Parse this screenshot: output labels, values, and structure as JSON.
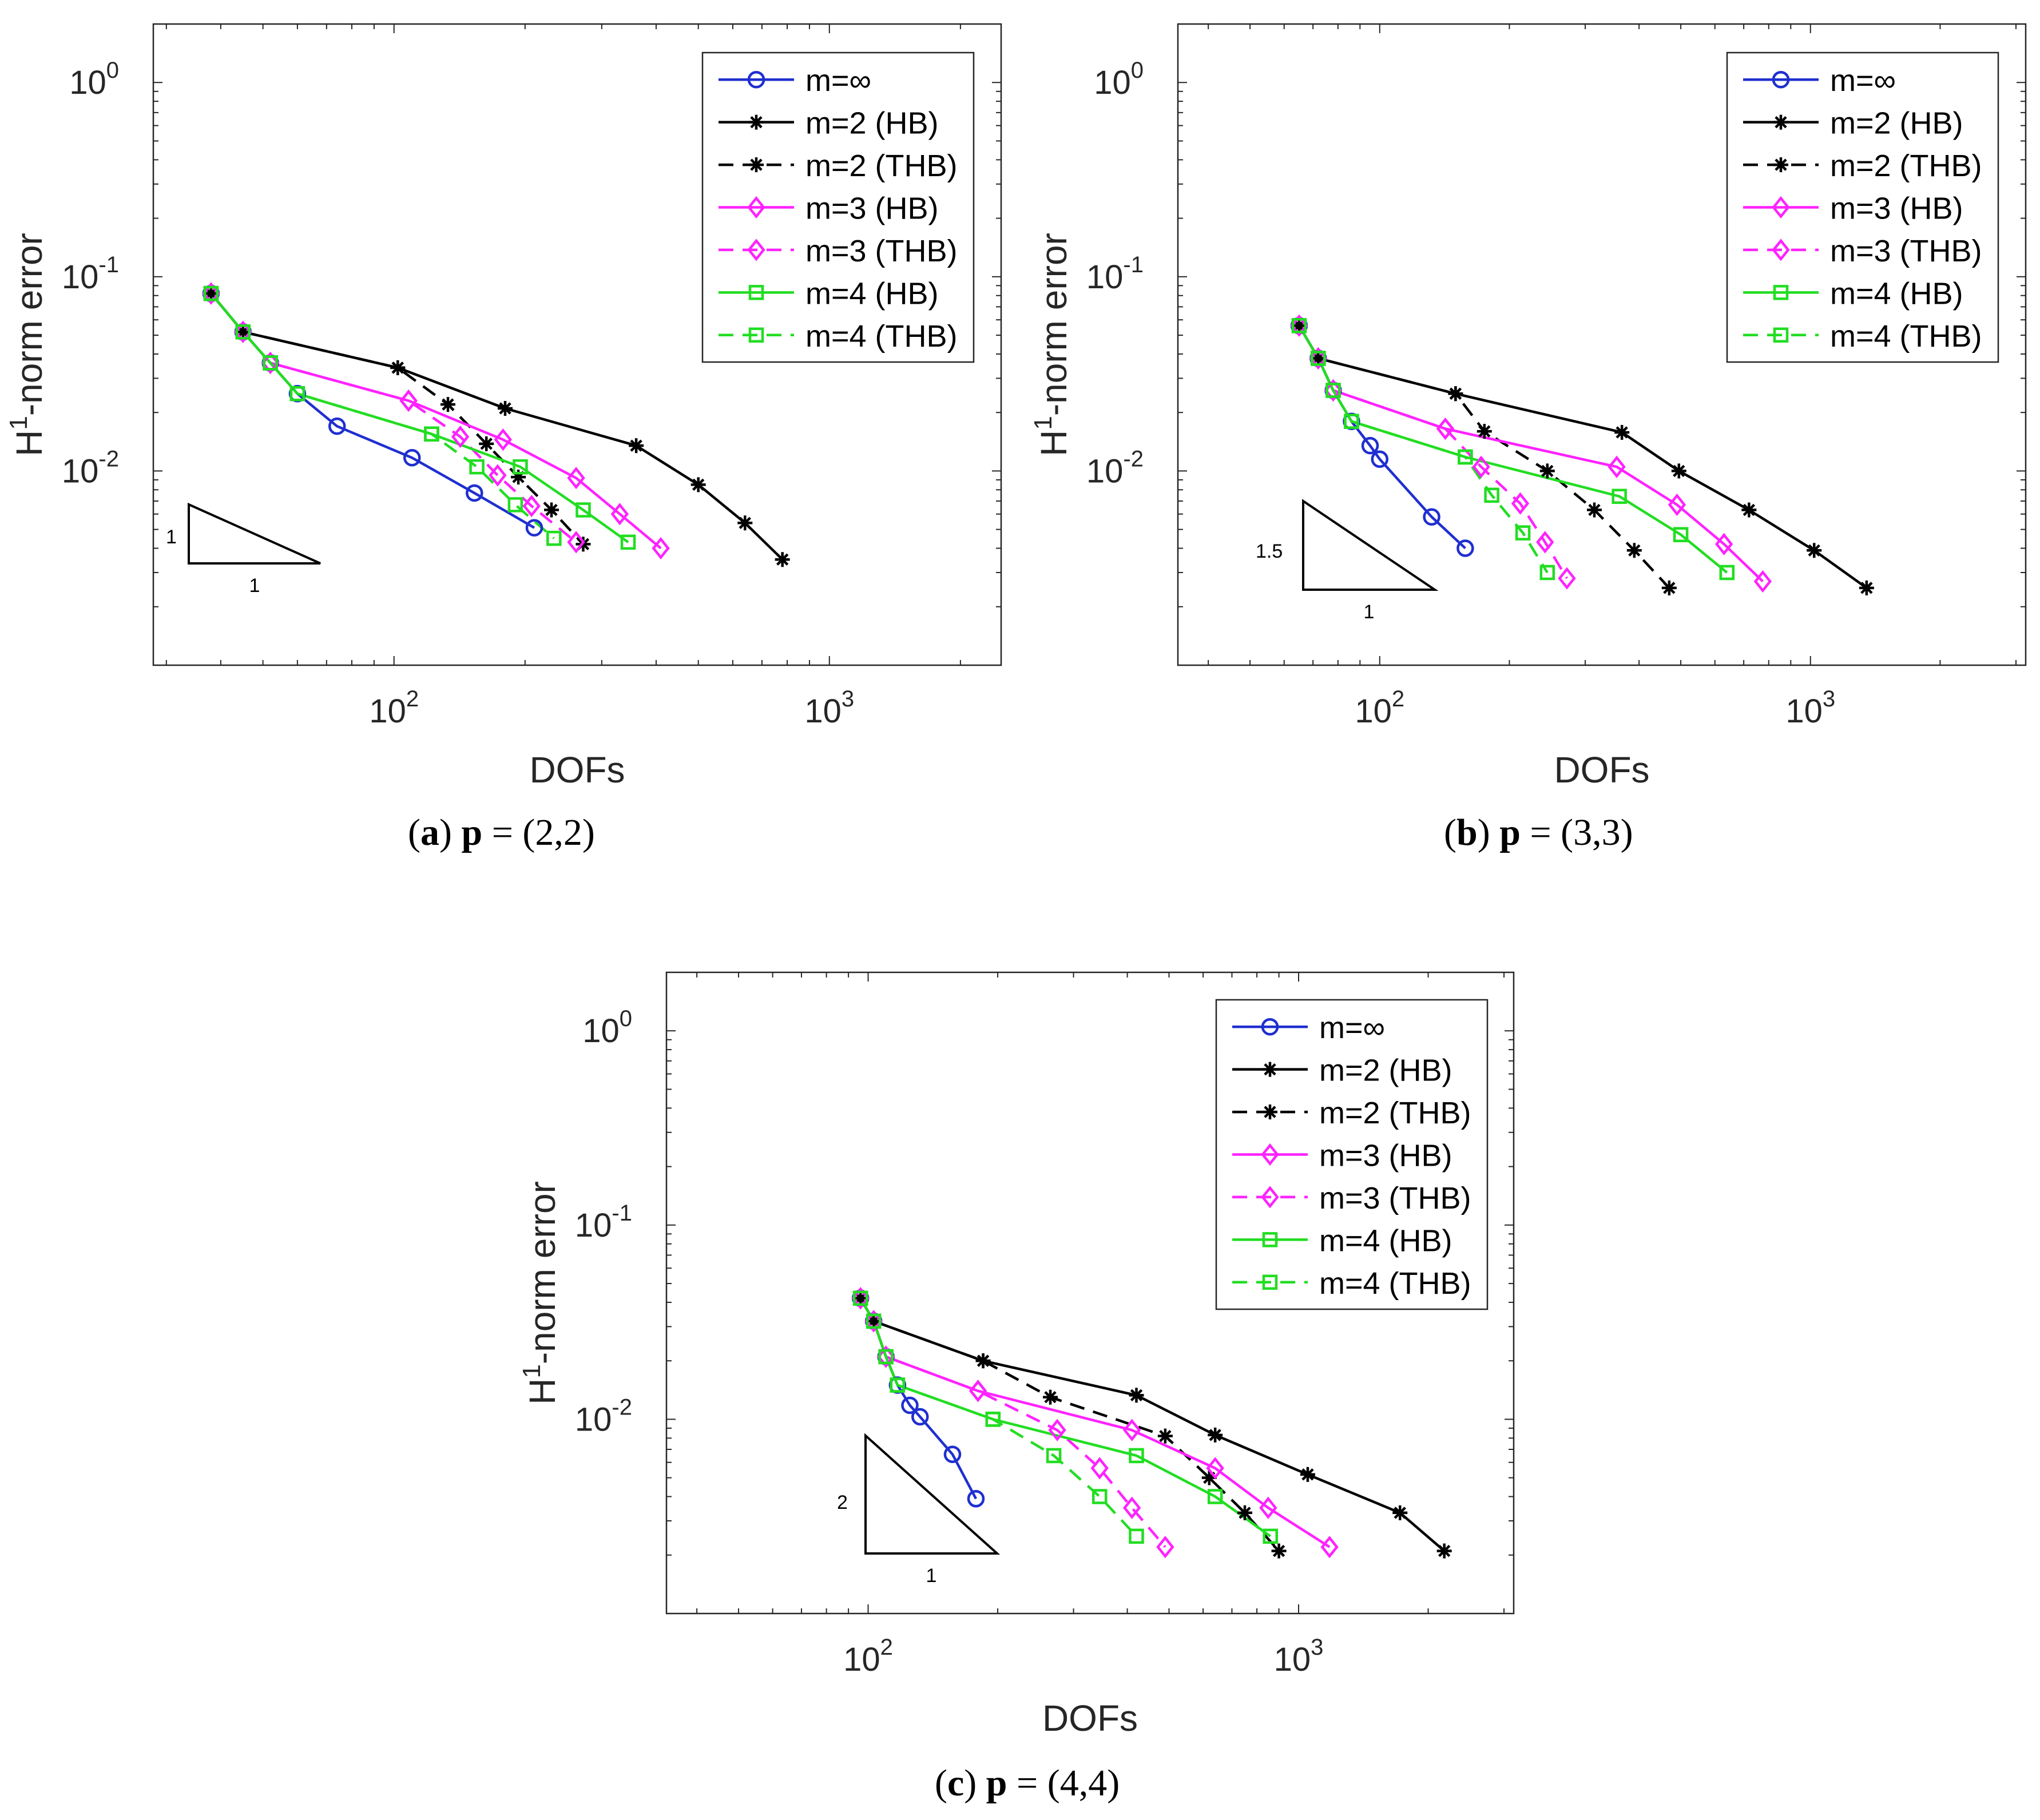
{
  "figure": {
    "panels": [
      {
        "id": "a",
        "label": "a",
        "p_value": "(2,2)",
        "math_symbol": "p",
        "slope_label": "1",
        "base_label": "1"
      },
      {
        "id": "b",
        "label": "b",
        "p_value": "(3,3)",
        "math_symbol": "p",
        "slope_label": "1.5",
        "base_label": "1"
      },
      {
        "id": "c",
        "label": "c",
        "p_value": "(4,4)",
        "math_symbol": "p",
        "slope_label": "2",
        "base_label": "1"
      }
    ]
  },
  "colors": {
    "m_inf": "#1f2fd0",
    "m2": "#000000",
    "m3": "#ff22ff",
    "m4": "#22dd22"
  },
  "chart_data": [
    {
      "type": "line",
      "title": "(a) p = (2,2)",
      "xlabel": "DOFs",
      "ylabel": "H^1-norm error",
      "xscale": "log",
      "yscale": "log",
      "xlim": [
        28,
        2480
      ],
      "ylim": [
        0.001,
        2.0
      ],
      "xticks": [
        {
          "value": 100,
          "base": "10",
          "exp": "2"
        },
        {
          "value": 1000,
          "base": "10",
          "exp": "3"
        }
      ],
      "yticks": [
        {
          "value": 1,
          "base": "10",
          "exp": "0"
        },
        {
          "value": 0.1,
          "base": "10",
          "exp": "-1"
        },
        {
          "value": 0.01,
          "base": "10",
          "exp": "-2"
        }
      ],
      "legend_position": "top-right",
      "series": [
        {
          "name": "m=∞",
          "color": "#1f2fd0",
          "dash": "solid",
          "marker": "circle",
          "x": [
            38,
            45,
            52,
            60,
            74,
            110,
            153,
            210
          ],
          "y": [
            0.082,
            0.052,
            0.036,
            0.025,
            0.017,
            0.0117,
            0.0077,
            0.0051
          ]
        },
        {
          "name": "m=2 (HB)",
          "color": "#000000",
          "dash": "solid",
          "marker": "asterisk",
          "x": [
            38,
            45,
            102,
            180,
            360,
            500,
            640,
            780
          ],
          "y": [
            0.082,
            0.052,
            0.034,
            0.021,
            0.0135,
            0.0085,
            0.0054,
            0.0035
          ]
        },
        {
          "name": "m=2 (THB)",
          "color": "#000000",
          "dash": "dashed",
          "marker": "asterisk",
          "x": [
            38,
            45,
            102,
            133,
            163,
            193,
            230,
            272
          ],
          "y": [
            0.082,
            0.052,
            0.034,
            0.022,
            0.0138,
            0.0093,
            0.0063,
            0.0042
          ]
        },
        {
          "name": "m=3 (HB)",
          "color": "#ff22ff",
          "dash": "solid",
          "marker": "diamond",
          "x": [
            38,
            45,
            52,
            108,
            178,
            262,
            330,
            410
          ],
          "y": [
            0.082,
            0.052,
            0.036,
            0.023,
            0.0145,
            0.0092,
            0.006,
            0.004
          ]
        },
        {
          "name": "m=3 (THB)",
          "color": "#ff22ff",
          "dash": "dashed",
          "marker": "diamond",
          "x": [
            38,
            45,
            52,
            108,
            142,
            173,
            207,
            262
          ],
          "y": [
            0.082,
            0.052,
            0.036,
            0.023,
            0.015,
            0.0095,
            0.0066,
            0.0043
          ]
        },
        {
          "name": "m=4 (HB)",
          "color": "#22dd22",
          "dash": "solid",
          "marker": "square",
          "x": [
            38,
            45,
            52,
            60,
            122,
            195,
            272,
            345
          ],
          "y": [
            0.082,
            0.052,
            0.036,
            0.025,
            0.0155,
            0.0105,
            0.0063,
            0.0043
          ]
        },
        {
          "name": "m=4 (THB)",
          "color": "#22dd22",
          "dash": "dashed",
          "marker": "square",
          "x": [
            38,
            45,
            52,
            60,
            122,
            155,
            190,
            233
          ],
          "y": [
            0.082,
            0.052,
            0.036,
            0.025,
            0.0155,
            0.0105,
            0.0067,
            0.0045
          ]
        }
      ]
    },
    {
      "type": "line",
      "title": "(b) p = (3,3)",
      "xlabel": "DOFs",
      "ylabel": "H^1-norm error",
      "xscale": "log",
      "yscale": "log",
      "xlim": [
        34,
        3160
      ],
      "ylim": [
        0.001,
        2.0
      ],
      "xticks": [
        {
          "value": 100,
          "base": "10",
          "exp": "2"
        },
        {
          "value": 1000,
          "base": "10",
          "exp": "3"
        }
      ],
      "yticks": [
        {
          "value": 1,
          "base": "10",
          "exp": "0"
        },
        {
          "value": 0.1,
          "base": "10",
          "exp": "-1"
        },
        {
          "value": 0.01,
          "base": "10",
          "exp": "-2"
        }
      ],
      "legend_position": "top-right",
      "series": [
        {
          "name": "m=∞",
          "color": "#1f2fd0",
          "dash": "solid",
          "marker": "circle",
          "x": [
            65,
            72,
            78,
            86,
            95,
            100,
            132,
            158
          ],
          "y": [
            0.056,
            0.038,
            0.026,
            0.018,
            0.0135,
            0.0115,
            0.0058,
            0.004
          ]
        },
        {
          "name": "m=2 (HB)",
          "color": "#000000",
          "dash": "solid",
          "marker": "asterisk",
          "x": [
            65,
            72,
            150,
            365,
            495,
            720,
            1020,
            1350
          ],
          "y": [
            0.056,
            0.038,
            0.025,
            0.0158,
            0.01,
            0.0063,
            0.0039,
            0.0025
          ]
        },
        {
          "name": "m=2 (THB)",
          "color": "#000000",
          "dash": "dashed",
          "marker": "asterisk",
          "x": [
            65,
            72,
            150,
            175,
            245,
            315,
            390,
            470
          ],
          "y": [
            0.056,
            0.038,
            0.025,
            0.016,
            0.01,
            0.0063,
            0.0039,
            0.0025
          ]
        },
        {
          "name": "m=3 (HB)",
          "color": "#ff22ff",
          "dash": "solid",
          "marker": "diamond",
          "x": [
            65,
            72,
            78,
            142,
            355,
            490,
            630,
            775
          ],
          "y": [
            0.056,
            0.038,
            0.026,
            0.0165,
            0.0105,
            0.0067,
            0.0042,
            0.0027
          ]
        },
        {
          "name": "m=3 (THB)",
          "color": "#ff22ff",
          "dash": "dashed",
          "marker": "diamond",
          "x": [
            65,
            72,
            78,
            142,
            172,
            212,
            242,
            272
          ],
          "y": [
            0.056,
            0.038,
            0.026,
            0.0165,
            0.0105,
            0.0068,
            0.0043,
            0.0028
          ]
        },
        {
          "name": "m=4 (HB)",
          "color": "#22dd22",
          "dash": "solid",
          "marker": "square",
          "x": [
            65,
            72,
            78,
            86,
            158,
            360,
            500,
            640
          ],
          "y": [
            0.056,
            0.038,
            0.026,
            0.018,
            0.0118,
            0.0074,
            0.0047,
            0.003
          ]
        },
        {
          "name": "m=4 (THB)",
          "color": "#22dd22",
          "dash": "dashed",
          "marker": "square",
          "x": [
            65,
            72,
            78,
            86,
            158,
            182,
            215,
            245
          ],
          "y": [
            0.056,
            0.038,
            0.026,
            0.018,
            0.0118,
            0.0075,
            0.0048,
            0.003
          ]
        }
      ]
    },
    {
      "type": "line",
      "title": "(c) p = (4,4)",
      "xlabel": "DOFs",
      "ylabel": "H^1-norm error",
      "xscale": "log",
      "yscale": "log",
      "xlim": [
        34,
        3160
      ],
      "ylim": [
        0.001,
        2.0
      ],
      "xticks": [
        {
          "value": 100,
          "base": "10",
          "exp": "2"
        },
        {
          "value": 1000,
          "base": "10",
          "exp": "3"
        }
      ],
      "yticks": [
        {
          "value": 1,
          "base": "10",
          "exp": "0"
        },
        {
          "value": 0.1,
          "base": "10",
          "exp": "-1"
        },
        {
          "value": 0.01,
          "base": "10",
          "exp": "-2"
        }
      ],
      "legend_position": "top-right",
      "series": [
        {
          "name": "m=∞",
          "color": "#1f2fd0",
          "dash": "solid",
          "marker": "circle",
          "x": [
            96,
            103,
            110,
            117,
            125,
            132,
            157,
            178
          ],
          "y": [
            0.042,
            0.032,
            0.021,
            0.015,
            0.0118,
            0.0103,
            0.0066,
            0.0039
          ]
        },
        {
          "name": "m=2 (HB)",
          "color": "#000000",
          "dash": "solid",
          "marker": "asterisk",
          "x": [
            96,
            103,
            185,
            420,
            640,
            1050,
            1720,
            2180
          ],
          "y": [
            0.042,
            0.032,
            0.02,
            0.0133,
            0.0083,
            0.0052,
            0.0033,
            0.0021
          ]
        },
        {
          "name": "m=2 (THB)",
          "color": "#000000",
          "dash": "dashed",
          "marker": "asterisk",
          "x": [
            96,
            103,
            185,
            265,
            490,
            620,
            750,
            900
          ],
          "y": [
            0.042,
            0.032,
            0.02,
            0.013,
            0.0082,
            0.005,
            0.0033,
            0.0021
          ]
        },
        {
          "name": "m=3 (HB)",
          "color": "#ff22ff",
          "dash": "solid",
          "marker": "diamond",
          "x": [
            96,
            103,
            110,
            180,
            410,
            640,
            850,
            1180
          ],
          "y": [
            0.042,
            0.032,
            0.021,
            0.014,
            0.0088,
            0.0056,
            0.0035,
            0.0022
          ]
        },
        {
          "name": "m=3 (THB)",
          "color": "#ff22ff",
          "dash": "dashed",
          "marker": "diamond",
          "x": [
            96,
            103,
            110,
            180,
            275,
            345,
            410,
            490
          ],
          "y": [
            0.042,
            0.032,
            0.021,
            0.014,
            0.0088,
            0.0056,
            0.0035,
            0.0022
          ]
        },
        {
          "name": "m=4 (HB)",
          "color": "#22dd22",
          "dash": "solid",
          "marker": "square",
          "x": [
            96,
            103,
            110,
            117,
            195,
            420,
            640,
            860
          ],
          "y": [
            0.042,
            0.032,
            0.021,
            0.015,
            0.01,
            0.0065,
            0.004,
            0.0025
          ]
        },
        {
          "name": "m=4 (THB)",
          "color": "#22dd22",
          "dash": "dashed",
          "marker": "square",
          "x": [
            96,
            103,
            110,
            117,
            195,
            270,
            345,
            420
          ],
          "y": [
            0.042,
            0.032,
            0.021,
            0.015,
            0.01,
            0.0065,
            0.004,
            0.0025
          ]
        }
      ]
    }
  ]
}
